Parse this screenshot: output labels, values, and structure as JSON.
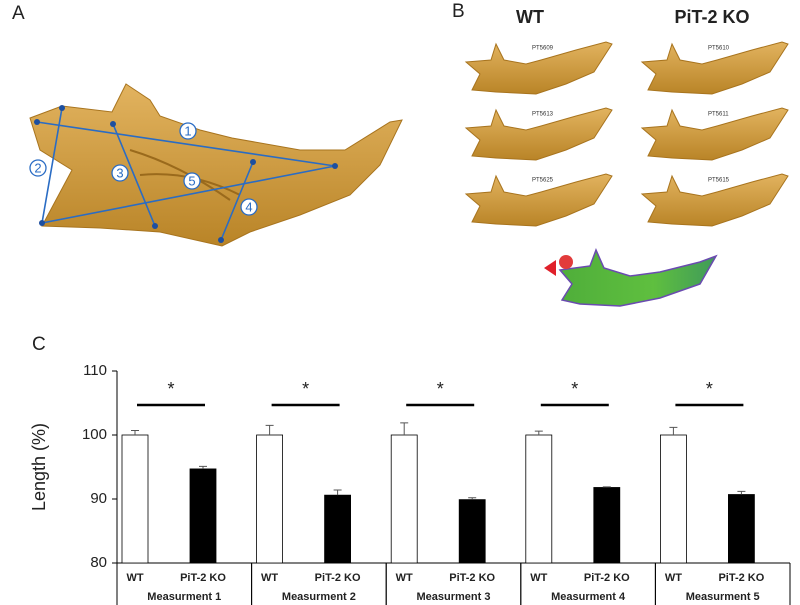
{
  "panels": {
    "a": {
      "label": "A",
      "measure_labels": [
        "1",
        "2",
        "3",
        "4",
        "5"
      ]
    },
    "b": {
      "label": "B",
      "columns": [
        "WT",
        "PiT-2 KO"
      ],
      "samples": [
        [
          "PT5609",
          "PT5610"
        ],
        [
          "PT5613",
          "PT5611"
        ],
        [
          "PT5625",
          "PT5615"
        ]
      ]
    },
    "c": {
      "label": "C"
    }
  },
  "chart_data": {
    "type": "bar",
    "y_label": "Length (%)",
    "categories": [
      "Measurment 1",
      "Measurment 2",
      "Measurment 3",
      "Measurment 4",
      "Measurment 5"
    ],
    "series": [
      {
        "name": "WT",
        "color": "#ffffff",
        "values": [
          100,
          100,
          100,
          100,
          100
        ],
        "errors": [
          0.7,
          1.5,
          1.9,
          0.6,
          1.2
        ]
      },
      {
        "name": "PiT-2 KO",
        "color": "#000000",
        "values": [
          94.7,
          90.6,
          89.9,
          91.8,
          90.7
        ],
        "errors": [
          0.4,
          0.8,
          0.3,
          0.1,
          0.5
        ]
      }
    ],
    "annotations": [
      "*",
      "*",
      "*",
      "*",
      "*"
    ],
    "ylim": [
      80,
      110
    ],
    "yticks": [
      80,
      90,
      100,
      110
    ],
    "grid": false
  }
}
